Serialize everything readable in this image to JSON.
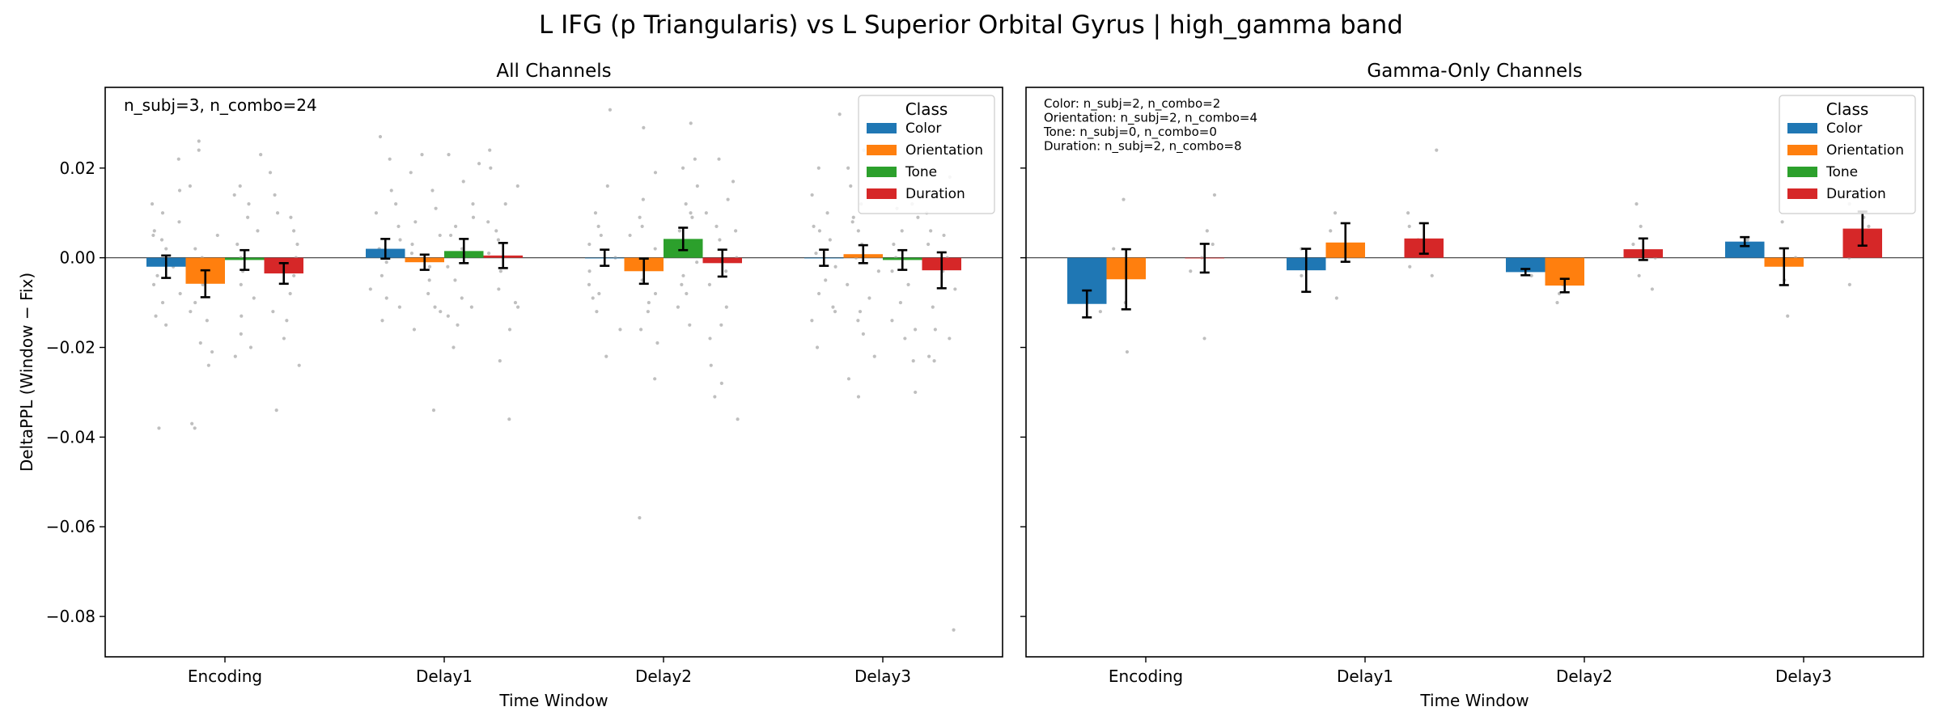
{
  "figure_title": "L IFG (p Triangularis) vs L Superior Orbital Gyrus  |  high_gamma band",
  "colors": {
    "Color": "#1f77b4",
    "Orientation": "#ff7f0e",
    "Tone": "#2ca02c",
    "Duration": "#d62728",
    "points": "#aaaaaa",
    "errorbar": "#000000"
  },
  "chart_data": [
    {
      "type": "bar",
      "title": "All Channels",
      "xlabel": "Time Window",
      "ylabel": "DeltaPPL (Window − Fix)",
      "categories": [
        "Encoding",
        "Delay1",
        "Delay2",
        "Delay3"
      ],
      "ylim": [
        -0.089,
        0.038
      ],
      "yticks": [
        0.02,
        0.0,
        -0.02,
        -0.04,
        -0.06,
        -0.08
      ],
      "ytick_labels": [
        "0.02",
        "0.00",
        "−0.02",
        "−0.04",
        "−0.06",
        "−0.08"
      ],
      "zero_line": true,
      "grid": false,
      "legend": {
        "title": "Class",
        "position": "top-right",
        "entries": [
          "Color",
          "Orientation",
          "Tone",
          "Duration"
        ]
      },
      "annotation": [
        "n_subj=3, n_combo=24"
      ],
      "series": [
        {
          "name": "Color",
          "values": [
            -0.002,
            0.002,
            0.0,
            0.0
          ],
          "err": [
            0.0025,
            0.0022,
            0.0018,
            0.0018
          ]
        },
        {
          "name": "Orientation",
          "values": [
            -0.0058,
            -0.001,
            -0.003,
            0.0008
          ],
          "err": [
            0.003,
            0.0017,
            0.0028,
            0.002
          ]
        },
        {
          "name": "Tone",
          "values": [
            -0.0005,
            0.0015,
            0.0042,
            -0.0005
          ],
          "err": [
            0.0022,
            0.0027,
            0.0025,
            0.0022
          ]
        },
        {
          "name": "Duration",
          "values": [
            -0.0035,
            0.0005,
            -0.0012,
            -0.0028
          ],
          "err": [
            0.0023,
            0.0028,
            0.003,
            0.004
          ]
        }
      ],
      "points": [
        [
          [
            0.022,
            0.015,
            0.012,
            0.01,
            0.008,
            0.006,
            0.004,
            0.002,
            -0.001,
            -0.004,
            -0.006,
            -0.008,
            -0.01,
            -0.013,
            -0.015,
            -0.038,
            0.005,
            -0.002
          ],
          [
            0.026,
            0.024,
            0.016,
            0.005,
            0.002,
            -0.003,
            -0.006,
            -0.01,
            -0.014,
            -0.019,
            -0.021,
            -0.024,
            -0.037,
            -0.038,
            0.0,
            -0.012
          ],
          [
            0.023,
            0.016,
            0.012,
            0.009,
            0.006,
            0.003,
            0.0,
            -0.003,
            -0.006,
            -0.009,
            -0.013,
            -0.017,
            -0.022,
            0.014,
            -0.02
          ],
          [
            0.019,
            0.014,
            0.009,
            0.006,
            0.003,
            0.0,
            -0.004,
            -0.008,
            -0.014,
            -0.018,
            -0.024,
            -0.034,
            0.01,
            -0.012
          ]
        ],
        [
          [
            0.027,
            0.022,
            0.015,
            0.01,
            0.007,
            0.004,
            0.002,
            -0.001,
            -0.004,
            -0.007,
            -0.011,
            -0.014,
            0.012,
            -0.009
          ],
          [
            0.023,
            0.019,
            0.015,
            0.011,
            0.008,
            0.005,
            0.001,
            -0.002,
            -0.005,
            -0.008,
            -0.011,
            -0.016,
            -0.034,
            0.003,
            -0.012
          ],
          [
            0.023,
            0.021,
            0.017,
            0.012,
            0.009,
            0.005,
            0.002,
            -0.002,
            -0.005,
            -0.009,
            -0.013,
            -0.015,
            -0.02,
            0.007,
            -0.011
          ],
          [
            0.024,
            0.02,
            0.016,
            0.012,
            0.008,
            0.004,
            0.001,
            -0.003,
            -0.007,
            -0.011,
            -0.016,
            -0.023,
            -0.036,
            0.006,
            -0.01
          ]
        ],
        [
          [
            0.033,
            0.016,
            0.01,
            0.007,
            0.003,
            0.0,
            -0.003,
            -0.006,
            -0.009,
            -0.012,
            -0.016,
            -0.022,
            0.005,
            -0.008
          ],
          [
            0.029,
            0.019,
            0.013,
            0.009,
            0.005,
            0.002,
            -0.002,
            -0.005,
            -0.008,
            -0.012,
            -0.016,
            -0.019,
            -0.027,
            -0.058,
            0.007,
            -0.01
          ],
          [
            0.03,
            0.022,
            0.02,
            0.016,
            0.012,
            0.009,
            0.006,
            0.003,
            -0.001,
            -0.004,
            -0.008,
            -0.011,
            -0.015,
            0.01,
            -0.006
          ],
          [
            0.022,
            0.017,
            0.013,
            0.01,
            0.007,
            0.004,
            0.0,
            -0.003,
            -0.006,
            -0.011,
            -0.018,
            -0.024,
            -0.028,
            -0.031,
            -0.036,
            0.006,
            -0.015
          ]
        ],
        [
          [
            0.032,
            0.02,
            0.014,
            0.01,
            0.007,
            0.004,
            0.001,
            -0.002,
            -0.005,
            -0.008,
            -0.011,
            -0.014,
            -0.02,
            0.006,
            -0.012
          ],
          [
            0.024,
            0.02,
            0.016,
            0.012,
            0.009,
            0.006,
            0.003,
            0.0,
            -0.003,
            -0.006,
            -0.009,
            -0.012,
            -0.017,
            -0.022,
            -0.027,
            -0.031,
            0.008,
            -0.014
          ],
          [
            0.023,
            0.019,
            0.015,
            0.012,
            0.009,
            0.006,
            0.003,
            0.0,
            -0.003,
            -0.006,
            -0.01,
            -0.014,
            -0.018,
            -0.023,
            -0.03,
            0.011,
            -0.016
          ],
          [
            0.018,
            0.014,
            0.01,
            0.006,
            0.003,
            0.0,
            -0.003,
            -0.007,
            -0.011,
            -0.016,
            -0.023,
            -0.022,
            -0.083,
            0.005,
            -0.018
          ]
        ]
      ]
    },
    {
      "type": "bar",
      "title": "Gamma-Only Channels",
      "xlabel": "Time Window",
      "categories": [
        "Encoding",
        "Delay1",
        "Delay2",
        "Delay3"
      ],
      "ylim": [
        -0.089,
        0.038
      ],
      "yticks": [
        0.02,
        0.0,
        -0.02,
        -0.04,
        -0.06,
        -0.08
      ],
      "zero_line": true,
      "grid": false,
      "legend": {
        "title": "Class",
        "position": "top-right",
        "entries": [
          "Color",
          "Orientation",
          "Tone",
          "Duration"
        ]
      },
      "annotation": [
        "Color: n_subj=2, n_combo=2",
        "Orientation: n_subj=2, n_combo=4",
        "Tone: n_subj=0, n_combo=0",
        "Duration: n_subj=2, n_combo=8"
      ],
      "series": [
        {
          "name": "Color",
          "values": [
            -0.0103,
            -0.0028,
            -0.0032,
            0.0036
          ],
          "err": [
            0.003,
            0.0048,
            0.0007,
            0.001
          ]
        },
        {
          "name": "Orientation",
          "values": [
            -0.0048,
            0.0034,
            -0.0062,
            -0.002
          ],
          "err": [
            0.0067,
            0.0043,
            0.0015,
            0.0041
          ]
        },
        {
          "name": "Tone",
          "values": [
            null,
            null,
            null,
            null
          ],
          "err": [
            null,
            null,
            null,
            null
          ]
        },
        {
          "name": "Duration",
          "values": [
            -0.0001,
            0.0043,
            0.0019,
            0.0065
          ],
          "err": [
            0.0032,
            0.0034,
            0.0024,
            0.0038
          ]
        }
      ],
      "points": [
        [
          [
            -0.012,
            -0.009
          ],
          [
            0.013,
            0.002,
            -0.01,
            -0.021
          ],
          [],
          [
            0.014,
            0.006,
            0.003,
            0.0,
            -0.003,
            -0.018
          ]
        ],
        [
          [
            0.002,
            -0.004
          ],
          [
            0.01,
            0.006,
            0.001,
            -0.009
          ],
          [],
          [
            0.024,
            0.01,
            0.007,
            0.004,
            0.001,
            -0.002,
            -0.004
          ]
        ],
        [
          [
            -0.002,
            -0.004
          ],
          [
            -0.004,
            -0.006,
            -0.008,
            -0.01
          ],
          [],
          [
            0.012,
            0.007,
            0.003,
            0.0,
            -0.004,
            -0.007
          ]
        ],
        [
          [
            0.004,
            0.003
          ],
          [
            0.008,
            0.0,
            -0.005,
            -0.013
          ],
          [],
          [
            0.012,
            0.009,
            0.007,
            0.003,
            0.0,
            -0.006
          ]
        ]
      ]
    }
  ]
}
